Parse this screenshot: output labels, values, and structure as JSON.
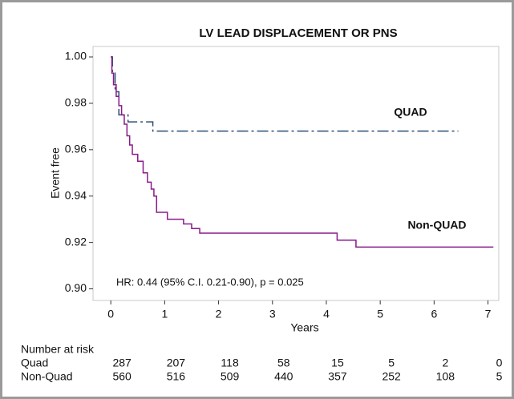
{
  "chart_data": {
    "type": "line",
    "title": "LV LEAD DISPLACEMENT OR PNS",
    "xlabel": "Years",
    "ylabel": "Event free",
    "xlim": [
      -0.33,
      7.2
    ],
    "ylim": [
      0.895,
      1.0045
    ],
    "xticks": [
      0,
      1,
      2,
      3,
      4,
      5,
      6,
      7
    ],
    "yticks": [
      {
        "value": 0.9,
        "label": "0.90"
      },
      0.92,
      0.94,
      0.96,
      0.98,
      {
        "value": 1,
        "label": "1.00"
      }
    ],
    "grid": false,
    "series": [
      {
        "name": "QUAD",
        "color": "#2c4f73",
        "dash": "dashdot",
        "x": [
          0,
          0.03,
          0.03,
          0.08,
          0.08,
          0.15,
          0.15,
          0.32,
          0.32,
          0.78,
          0.78,
          6.45
        ],
        "values": [
          1,
          1,
          0.993,
          0.993,
          0.985,
          0.985,
          0.975,
          0.975,
          0.972,
          0.972,
          0.968,
          0.968
        ]
      },
      {
        "name": "Non-QUAD",
        "color": "#8a1a8a",
        "dash": "solid",
        "x": [
          0,
          0.02,
          0.02,
          0.05,
          0.05,
          0.1,
          0.1,
          0.15,
          0.15,
          0.2,
          0.2,
          0.25,
          0.25,
          0.3,
          0.3,
          0.35,
          0.35,
          0.4,
          0.4,
          0.5,
          0.5,
          0.6,
          0.6,
          0.68,
          0.68,
          0.75,
          0.75,
          0.8,
          0.8,
          0.85,
          0.85,
          1.05,
          1.05,
          1.35,
          1.35,
          1.5,
          1.5,
          1.65,
          1.65,
          4.2,
          4.2,
          4.55,
          4.55,
          7.1
        ],
        "values": [
          1,
          1,
          0.993,
          0.993,
          0.988,
          0.988,
          0.983,
          0.983,
          0.979,
          0.979,
          0.975,
          0.975,
          0.971,
          0.971,
          0.966,
          0.966,
          0.962,
          0.962,
          0.958,
          0.958,
          0.955,
          0.955,
          0.95,
          0.95,
          0.946,
          0.946,
          0.943,
          0.943,
          0.94,
          0.94,
          0.933,
          0.933,
          0.93,
          0.93,
          0.928,
          0.928,
          0.926,
          0.926,
          0.924,
          0.924,
          0.921,
          0.921,
          0.918,
          0.918
        ]
      }
    ],
    "annotation": "HR: 0.44 (95% C.I. 0.21-0.90), p = 0.025",
    "risk_table": {
      "title": "Number at risk",
      "rows": [
        {
          "name": "Quad",
          "color": "#2c5c86",
          "values": [
            287,
            207,
            118,
            58,
            15,
            5,
            2,
            0
          ]
        },
        {
          "name": "Non-Quad",
          "color": "#8a1a8a",
          "values": [
            560,
            516,
            509,
            440,
            357,
            252,
            108,
            5
          ]
        }
      ]
    }
  }
}
